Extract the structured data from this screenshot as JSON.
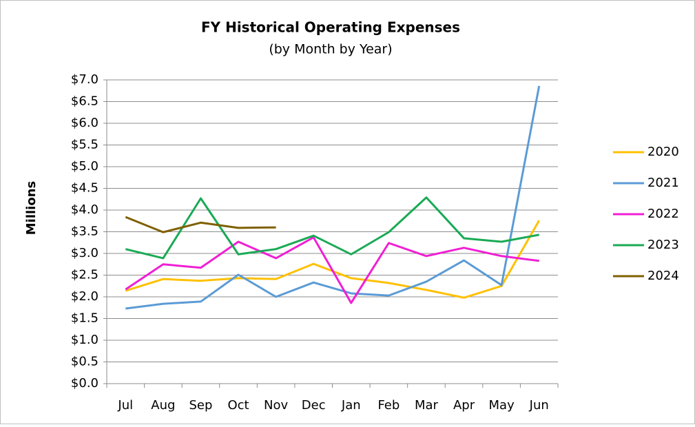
{
  "chart_data": {
    "type": "line",
    "title": "FY Historical Operating Expenses",
    "subtitle": "(by Month by Year)",
    "y_label": "Millions",
    "categories": [
      "Jul",
      "Aug",
      "Sep",
      "Oct",
      "Nov",
      "Dec",
      "Jan",
      "Feb",
      "Mar",
      "Apr",
      "May",
      "Jun"
    ],
    "series": [
      {
        "name": "2020",
        "color": "#ffc000",
        "values": [
          2.14,
          2.41,
          2.37,
          2.43,
          2.41,
          2.76,
          2.43,
          2.32,
          2.16,
          1.98,
          2.25,
          3.76
        ]
      },
      {
        "name": "2021",
        "color": "#5b9bd5",
        "values": [
          1.73,
          1.84,
          1.89,
          2.51,
          2.0,
          2.33,
          2.08,
          2.03,
          2.35,
          2.84,
          2.27,
          6.86
        ]
      },
      {
        "name": "2022",
        "color": "#f01fd4",
        "values": [
          2.17,
          2.75,
          2.67,
          3.27,
          2.89,
          3.37,
          1.86,
          3.24,
          2.94,
          3.13,
          2.94,
          2.83
        ]
      },
      {
        "name": "2023",
        "color": "#1aaa55",
        "values": [
          3.1,
          2.89,
          4.27,
          2.98,
          3.1,
          3.41,
          2.98,
          3.49,
          4.29,
          3.35,
          3.27,
          3.43
        ]
      },
      {
        "name": "2024",
        "color": "#7f6000",
        "values": [
          3.84,
          3.49,
          3.71,
          3.59,
          3.6,
          null,
          null,
          null,
          null,
          null,
          null,
          null
        ]
      }
    ],
    "ylim": [
      0,
      7
    ],
    "yticks": [
      {
        "value": 0,
        "label": "$0.0"
      },
      {
        "value": 0.5,
        "label": "$0.5"
      },
      {
        "value": 1,
        "label": "$1.0"
      },
      {
        "value": 1.5,
        "label": "$1.5"
      },
      {
        "value": 2,
        "label": "$2.0"
      },
      {
        "value": 2.5,
        "label": "$2.5"
      },
      {
        "value": 3,
        "label": "$3.0"
      },
      {
        "value": 3.5,
        "label": "$3.5"
      },
      {
        "value": 4,
        "label": "$4.0"
      },
      {
        "value": 4.5,
        "label": "$4.5"
      },
      {
        "value": 5,
        "label": "$5.0"
      },
      {
        "value": 5.5,
        "label": "$5.5"
      },
      {
        "value": 6,
        "label": "$6.0"
      },
      {
        "value": 6.5,
        "label": "$6.5"
      },
      {
        "value": 7,
        "label": "$7.0"
      }
    ],
    "grid": true,
    "legend": "right"
  }
}
